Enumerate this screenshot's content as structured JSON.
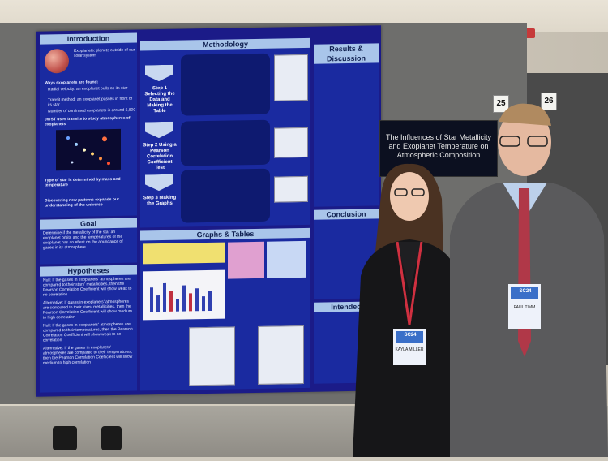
{
  "poster": {
    "sections": {
      "introduction": "Introduction",
      "methodology": "Methodology",
      "results": "Results & Discussion",
      "graphs": "Graphs & Tables",
      "goal": "Goal",
      "hypotheses": "Hypotheses",
      "conclusion": "Conclusion",
      "intended": "Intended"
    },
    "intro_lines": [
      "Exoplanets: planets outside of our solar system",
      "Ways exoplanets are found:",
      "Radial velocity: an exoplanet pulls on its star",
      "Transit method: an exoplanet passes in front of its star",
      "Number of confirmed exoplanets is around 5,800",
      "JWST uses transits to study atmospheres of exoplanets",
      "Type of star is determined by mass and temperature",
      "Discovering new patterns expands our understanding of the universe"
    ],
    "goal_text": "Determine if the metallicity of the star an exoplanet orbits and the temperatures of the exoplanet has an effect on the abundance of gases in its atmosphere",
    "hypotheses_lines": [
      "Null: If the gases in exoplanets' atmospheres are compared to their stars' metallicities, then the Pearson Correlation Coefficient will show weak to no correlation",
      "Alternative: If gases in exoplanets' atmospheres are compared to their stars' metallicities, then the Pearson Correlation Coefficient will show medium to high correlation",
      "Null: If the gases in exoplanets' atmospheres are compared to their temperatures, then the Pearson Correlation Coefficient will show weak to no correlation",
      "Alternative: If the gases in exoplanets' atmospheres are compared to their temperatures, then the Pearson Correlation Coefficient will show medium to high correlation"
    ],
    "steps": [
      "Step 1 Selecting the Data and Making the Table",
      "Step 2 Using a Pearson Correlation Coefficient Test",
      "Step 3 Making the Graphs"
    ]
  },
  "title_card": {
    "text": "The Influences of Star Metallicity and Exoplanet Temperature on Atmospheric Composition"
  },
  "board_numbers": [
    "25",
    "26"
  ],
  "badges": {
    "left": {
      "event": "SC24",
      "name": "KAYLA MILLER"
    },
    "right": {
      "event": "SC24",
      "name": "PAUL TIMM"
    }
  }
}
